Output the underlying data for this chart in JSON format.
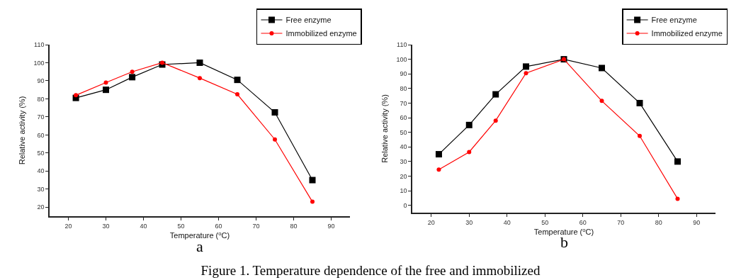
{
  "chart_data": [
    {
      "type": "line",
      "xlabel": "Temperature ($^{o}$C)",
      "ylabel": "Relative activity (%)",
      "annotations": [
        "a",
        "Figure 1. Temperature dependence of the free and immobilized"
      ],
      "x": [
        22,
        30,
        37,
        45,
        55,
        65,
        75,
        85
      ],
      "series": [
        {
          "name": "Free enzyme",
          "color": "#000000",
          "marker": "square",
          "values": [
            80.5,
            85,
            92,
            99,
            100,
            90.5,
            72.5,
            35
          ]
        },
        {
          "name": "Immobilized enzyme",
          "color": "#ff0000",
          "marker": "circle",
          "values": [
            82,
            89,
            95,
            100,
            91.5,
            82.5,
            57.5,
            23
          ]
        }
      ],
      "xlim": [
        15,
        95
      ],
      "xticks": [
        20,
        30,
        40,
        50,
        60,
        70,
        80,
        90
      ],
      "ylim": [
        15,
        110
      ],
      "yticks": [
        20,
        30,
        40,
        50,
        60,
        70,
        80,
        90,
        100,
        110
      ],
      "grid": false,
      "legend": "top right",
      "line_style": "solid"
    },
    {
      "type": "line",
      "xlabel": "Temperature ($^{o}$C)",
      "ylabel": "Relative activity (%)",
      "annotations": [
        "b"
      ],
      "x": [
        22,
        30,
        37,
        45,
        55,
        65,
        75,
        85
      ],
      "series": [
        {
          "name": "Free enzyme",
          "color": "#000000",
          "marker": "square",
          "values": [
            35,
            55,
            76,
            95,
            100,
            94,
            70,
            30
          ]
        },
        {
          "name": "Immobilized enzyme",
          "color": "#ff0000",
          "marker": "circle",
          "values": [
            24.5,
            36.5,
            58,
            90.5,
            100,
            71.5,
            47.5,
            4.5
          ]
        }
      ],
      "xlim": [
        15,
        95
      ],
      "xticks": [
        20,
        30,
        40,
        50,
        60,
        70,
        80,
        90
      ],
      "ylim": [
        -5,
        110
      ],
      "yticks": [
        0,
        10,
        20,
        30,
        40,
        50,
        60,
        70,
        80,
        90,
        100,
        110
      ],
      "grid": false,
      "legend": "top right",
      "line_style": "solid"
    }
  ]
}
